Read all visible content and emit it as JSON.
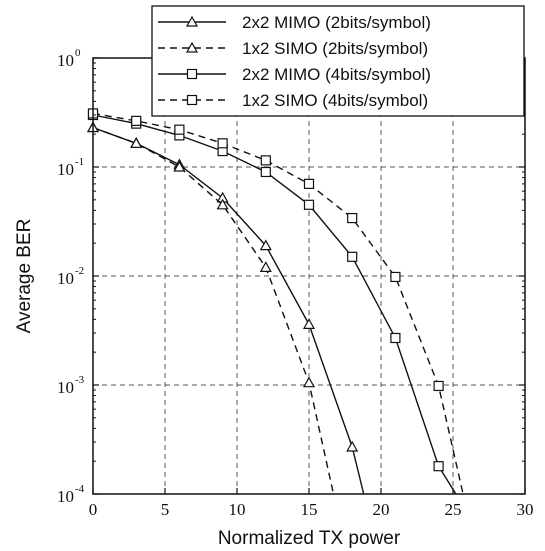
{
  "chart_data": {
    "type": "line",
    "xlabel": "Normalized TX power",
    "ylabel": "Average BER",
    "xlim": [
      0,
      30
    ],
    "ylim": [
      0.0001,
      1
    ],
    "y_scale": "log",
    "grid": true,
    "grid_style": "dashed",
    "legend_position": "top-right",
    "x_ticks": [
      "0",
      "5",
      "10",
      "15",
      "20",
      "25",
      "30"
    ],
    "y_ticks": [
      {
        "base": "10",
        "exp": "0"
      },
      {
        "base": "10",
        "exp": "-1"
      },
      {
        "base": "10",
        "exp": "-2"
      },
      {
        "base": "10",
        "exp": "-3"
      },
      {
        "base": "10",
        "exp": "-4"
      }
    ],
    "series": [
      {
        "name": "2x2 MIMO (2bits/symbol)",
        "line": "solid",
        "marker": "triangle",
        "x": [
          0,
          3,
          6,
          9,
          12,
          15,
          18,
          18.8
        ],
        "y": [
          0.23,
          0.165,
          0.105,
          0.052,
          0.019,
          0.0036,
          0.00027,
          0.0001
        ],
        "marker_x": [
          0,
          3,
          6,
          9,
          12,
          15,
          18
        ]
      },
      {
        "name": "1x2 SIMO (2bits/symbol)",
        "line": "dashed",
        "marker": "triangle",
        "x": [
          0,
          3,
          6,
          9,
          12,
          15,
          16.7
        ],
        "y": [
          0.23,
          0.165,
          0.1,
          0.045,
          0.012,
          0.00105,
          0.0001
        ],
        "marker_x": [
          0,
          3,
          6,
          9,
          12,
          15
        ]
      },
      {
        "name": "2x2 MIMO (4bits/symbol)",
        "line": "solid",
        "marker": "square",
        "x": [
          0,
          3,
          6,
          9,
          12,
          15,
          18,
          21,
          24,
          25.2
        ],
        "y": [
          0.3,
          0.25,
          0.195,
          0.14,
          0.09,
          0.045,
          0.015,
          0.0027,
          0.00018,
          0.0001
        ],
        "marker_x": [
          0,
          3,
          6,
          9,
          12,
          15,
          18,
          21,
          24
        ]
      },
      {
        "name": "1x2 SIMO (4bits/symbol)",
        "line": "dashed",
        "marker": "square",
        "x": [
          0,
          3,
          6,
          9,
          12,
          15,
          18,
          21,
          24,
          25.7
        ],
        "y": [
          0.31,
          0.265,
          0.22,
          0.165,
          0.115,
          0.07,
          0.034,
          0.0098,
          0.00098,
          0.0001
        ],
        "marker_x": [
          0,
          3,
          6,
          9,
          12,
          15,
          18,
          21,
          24
        ]
      }
    ]
  }
}
